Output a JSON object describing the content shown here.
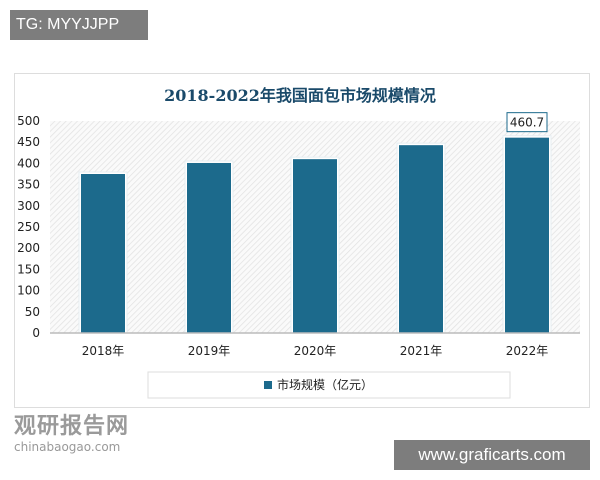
{
  "watermark_top": "TG: MYYJJPP",
  "watermark_bottom": "www.graficarts.com",
  "logo": {
    "cn": "观研报告网",
    "en": "chinabaogao.com"
  },
  "chart_data": {
    "type": "bar",
    "title": "2018-2022年我国面包市场规模情况",
    "categories": [
      "2018年",
      "2019年",
      "2020年",
      "2021年",
      "2022年"
    ],
    "series": [
      {
        "name": "市场规模（亿元）",
        "values": [
          375,
          401,
          410,
          443,
          460.7
        ],
        "color": "#1c6a8c"
      }
    ],
    "data_labels": {
      "2022年": "460.7"
    },
    "yticks": [
      0,
      50,
      100,
      150,
      200,
      250,
      300,
      350,
      400,
      450,
      500
    ],
    "ylim": [
      0,
      500
    ],
    "legend": "bottom",
    "title_color": "#1a4a6a"
  }
}
